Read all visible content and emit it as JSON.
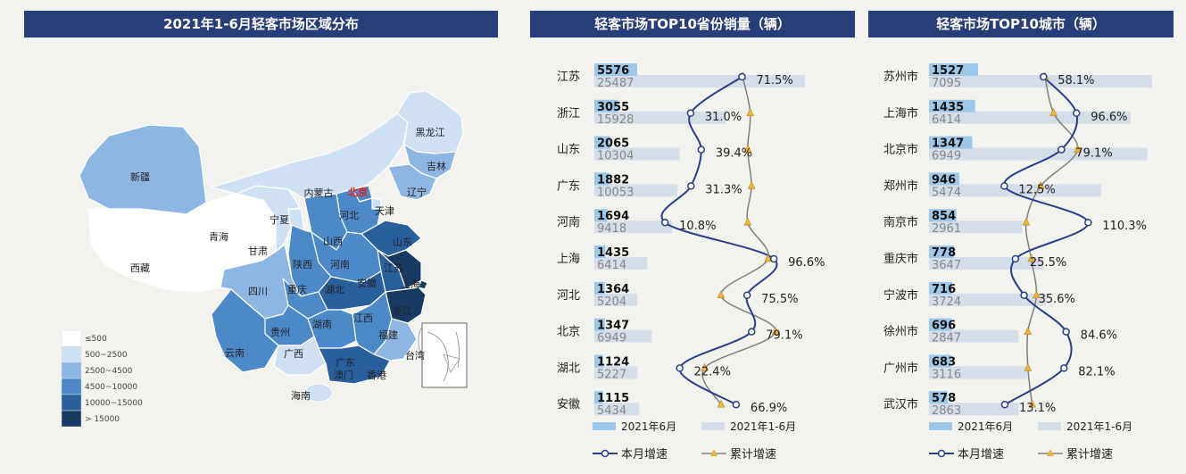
{
  "map_panel": {
    "title": "2021年1-6月轻客市场区域分布",
    "legend": [
      {
        "label": "≤500",
        "color": "#ffffff"
      },
      {
        "label": "500~2500",
        "color": "#cfe0f3"
      },
      {
        "label": "2500~4500",
        "color": "#8db7e2"
      },
      {
        "label": "4500~10000",
        "color": "#4d88c8"
      },
      {
        "label": "10000~15000",
        "color": "#2a5f9e"
      },
      {
        "label": "> 15000",
        "color": "#173a63"
      }
    ],
    "regions": {
      "xinjiang": "新疆",
      "xizang": "西藏",
      "qinghai": "青海",
      "gansu": "甘肃",
      "ningxia": "宁夏",
      "neimenggu": "内蒙古",
      "heilongjiang": "黑龙江",
      "jilin": "吉林",
      "liaoning": "辽宁",
      "beijing": "北京",
      "tianjin": "天津",
      "hebei": "河北",
      "shanxi": "山西",
      "shandong": "山东",
      "henan": "河南",
      "shaanxi": "陕西",
      "sichuan": "四川",
      "chongqing": "重庆",
      "hubei": "湖北",
      "anhui": "安徽",
      "jiangsu": "江苏",
      "shanghai": "上海",
      "zhejiang": "浙江",
      "guizhou": "贵州",
      "hunan": "湖南",
      "jiangxi": "江西",
      "fujian": "福建",
      "yunnan": "云南",
      "guangxi": "广西",
      "guangdong": "广东",
      "aomen": "澳门",
      "xianggang": "香港",
      "taiwan": "台湾",
      "hainan": "海南"
    }
  },
  "provinces_panel": {
    "title": "轻客市场TOP10省份销量（辆）",
    "legend": {
      "bar_jun": "2021年6月",
      "bar_h1": "2021年1-6月",
      "line_month": "本月增速",
      "line_cum": "累计增速"
    }
  },
  "cities_panel": {
    "title": "轻客市场TOP10城市（辆）",
    "legend": {
      "bar_jun": "2021年6月",
      "bar_h1": "2021年1-6月",
      "line_month": "本月增速",
      "line_cum": "累计增速"
    }
  },
  "colors": {
    "header": "#263f78",
    "bar_jun": "#9ec8ea",
    "bar_h1": "#d5dde8",
    "line_month": "#2c3f85",
    "line_cum": "#7f7f7f",
    "marker_cum": "#e8b53a"
  },
  "chart_data": [
    {
      "type": "bar",
      "title": "轻客市场TOP10省份销量（辆）",
      "categories": [
        "江苏",
        "浙江",
        "山东",
        "广东",
        "河南",
        "上海",
        "河北",
        "北京",
        "湖北",
        "安徽"
      ],
      "series": [
        {
          "name": "2021年6月",
          "values": [
            5576,
            3055,
            2065,
            1882,
            1694,
            1435,
            1364,
            1347,
            1124,
            1115
          ]
        },
        {
          "name": "2021年1-6月",
          "values": [
            25487,
            15928,
            10304,
            10053,
            9418,
            6414,
            5204,
            6949,
            5227,
            5434
          ]
        }
      ],
      "growth_labels": [
        "71.5%",
        "31.0%",
        "39.4%",
        "31.3%",
        "10.8%",
        "96.6%",
        "75.5%",
        "79.1%",
        "22.4%",
        "66.9%"
      ],
      "line_series": [
        {
          "name": "本月增速",
          "values": [
            71.5,
            31.0,
            39.4,
            31.3,
            10.8,
            96.6,
            75.5,
            79.1,
            22.4,
            66.9
          ]
        },
        {
          "name": "累计增速",
          "values": [
            72,
            78,
            76,
            79,
            76,
            92,
            55,
            98,
            42,
            55
          ]
        }
      ]
    },
    {
      "type": "bar",
      "title": "轻客市场TOP10城市（辆）",
      "categories": [
        "苏州市",
        "上海市",
        "北京市",
        "郑州市",
        "南京市",
        "重庆市",
        "宁波市",
        "徐州市",
        "广州市",
        "武汉市"
      ],
      "series": [
        {
          "name": "2021年6月",
          "values": [
            1527,
            1435,
            1347,
            946,
            854,
            778,
            716,
            696,
            683,
            578
          ]
        },
        {
          "name": "2021年1-6月",
          "values": [
            7095,
            6414,
            6949,
            5474,
            2961,
            3647,
            3724,
            2847,
            3116,
            2863
          ]
        }
      ],
      "growth_labels": [
        "58.1%",
        "96.6%",
        "79.1%",
        "12.5%",
        "110.3%",
        "25.5%",
        "35.6%",
        "84.6%",
        "82.1%",
        "13.1%"
      ],
      "line_series": [
        {
          "name": "本月增速",
          "values": [
            58.1,
            96.6,
            79.1,
            12.5,
            110.3,
            25.5,
            35.6,
            84.6,
            82.1,
            13.1
          ]
        },
        {
          "name": "累计增速",
          "values": [
            60,
            70,
            98,
            55,
            38,
            44,
            50,
            40,
            40,
            45
          ]
        }
      ]
    }
  ]
}
